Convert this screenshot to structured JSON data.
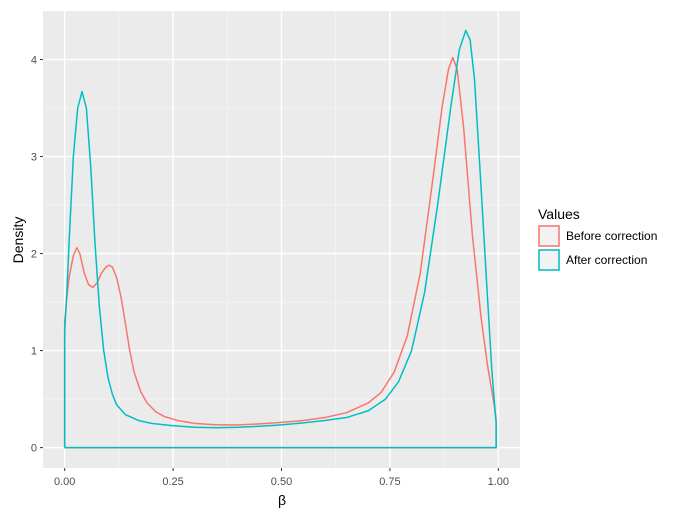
{
  "chart_data": {
    "type": "line",
    "xlabel": "β",
    "ylabel": "Density",
    "xlim": [
      -0.05,
      1.05
    ],
    "ylim": [
      -0.21,
      4.5
    ],
    "x_ticks": [
      0.0,
      0.25,
      0.5,
      0.75,
      1.0
    ],
    "x_tick_labels": [
      "0.00",
      "0.25",
      "0.50",
      "0.75",
      "1.00"
    ],
    "y_ticks": [
      0,
      1,
      2,
      3,
      4
    ],
    "y_tick_labels": [
      "0",
      "1",
      "2",
      "3",
      "4"
    ],
    "grid": true,
    "legend": {
      "title": "Values",
      "position": "right"
    },
    "series": [
      {
        "name": "Before correction",
        "color": "#F8766D",
        "points": [
          [
            0.0,
            0.0
          ],
          [
            0.0,
            1.3
          ],
          [
            0.005,
            1.55
          ],
          [
            0.01,
            1.75
          ],
          [
            0.02,
            1.98
          ],
          [
            0.028,
            2.06
          ],
          [
            0.035,
            2.0
          ],
          [
            0.045,
            1.8
          ],
          [
            0.055,
            1.68
          ],
          [
            0.065,
            1.65
          ],
          [
            0.075,
            1.7
          ],
          [
            0.085,
            1.8
          ],
          [
            0.095,
            1.86
          ],
          [
            0.102,
            1.88
          ],
          [
            0.11,
            1.86
          ],
          [
            0.12,
            1.75
          ],
          [
            0.13,
            1.55
          ],
          [
            0.14,
            1.28
          ],
          [
            0.15,
            1.0
          ],
          [
            0.16,
            0.78
          ],
          [
            0.175,
            0.58
          ],
          [
            0.19,
            0.46
          ],
          [
            0.21,
            0.37
          ],
          [
            0.23,
            0.32
          ],
          [
            0.26,
            0.28
          ],
          [
            0.3,
            0.25
          ],
          [
            0.35,
            0.235
          ],
          [
            0.4,
            0.235
          ],
          [
            0.45,
            0.245
          ],
          [
            0.5,
            0.26
          ],
          [
            0.55,
            0.28
          ],
          [
            0.6,
            0.31
          ],
          [
            0.65,
            0.36
          ],
          [
            0.7,
            0.46
          ],
          [
            0.73,
            0.57
          ],
          [
            0.76,
            0.78
          ],
          [
            0.79,
            1.15
          ],
          [
            0.82,
            1.8
          ],
          [
            0.85,
            2.8
          ],
          [
            0.87,
            3.5
          ],
          [
            0.885,
            3.9
          ],
          [
            0.895,
            4.02
          ],
          [
            0.905,
            3.9
          ],
          [
            0.92,
            3.3
          ],
          [
            0.94,
            2.2
          ],
          [
            0.96,
            1.35
          ],
          [
            0.975,
            0.85
          ],
          [
            0.99,
            0.45
          ],
          [
            0.995,
            0.28
          ],
          [
            0.995,
            0.0
          ],
          [
            0.0,
            0.0
          ]
        ]
      },
      {
        "name": "After correction",
        "color": "#00BFC4",
        "points": [
          [
            0.0,
            0.0
          ],
          [
            0.0,
            1.2
          ],
          [
            0.005,
            1.6
          ],
          [
            0.01,
            2.1
          ],
          [
            0.02,
            3.0
          ],
          [
            0.03,
            3.5
          ],
          [
            0.04,
            3.67
          ],
          [
            0.05,
            3.5
          ],
          [
            0.06,
            2.9
          ],
          [
            0.07,
            2.1
          ],
          [
            0.08,
            1.45
          ],
          [
            0.09,
            1.0
          ],
          [
            0.1,
            0.72
          ],
          [
            0.11,
            0.55
          ],
          [
            0.12,
            0.44
          ],
          [
            0.14,
            0.34
          ],
          [
            0.17,
            0.28
          ],
          [
            0.2,
            0.25
          ],
          [
            0.25,
            0.225
          ],
          [
            0.3,
            0.21
          ],
          [
            0.35,
            0.205
          ],
          [
            0.4,
            0.21
          ],
          [
            0.45,
            0.22
          ],
          [
            0.5,
            0.235
          ],
          [
            0.55,
            0.255
          ],
          [
            0.6,
            0.28
          ],
          [
            0.65,
            0.31
          ],
          [
            0.7,
            0.38
          ],
          [
            0.74,
            0.5
          ],
          [
            0.77,
            0.68
          ],
          [
            0.8,
            1.0
          ],
          [
            0.83,
            1.6
          ],
          [
            0.86,
            2.5
          ],
          [
            0.89,
            3.5
          ],
          [
            0.91,
            4.1
          ],
          [
            0.925,
            4.3
          ],
          [
            0.935,
            4.2
          ],
          [
            0.945,
            3.8
          ],
          [
            0.96,
            2.7
          ],
          [
            0.975,
            1.55
          ],
          [
            0.985,
            0.8
          ],
          [
            0.995,
            0.25
          ],
          [
            0.995,
            0.0
          ],
          [
            0.0,
            0.0
          ]
        ]
      }
    ]
  }
}
